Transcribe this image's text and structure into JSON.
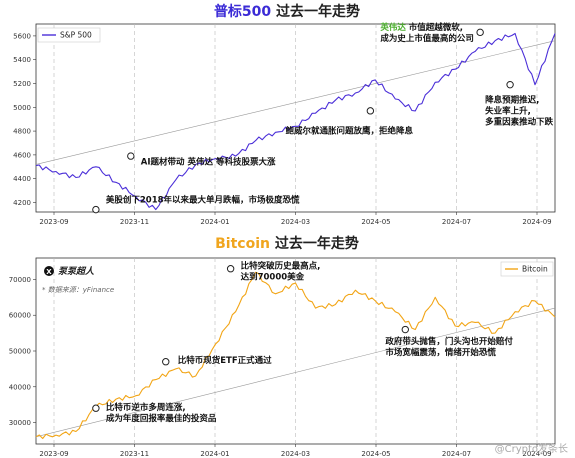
{
  "corner_watermark": "@Crypto发条长",
  "chart_data": [
    {
      "type": "line",
      "title_part1": "普标500",
      "title_part2": " 过去一年走势",
      "title_colors": [
        "#3b2bd6",
        "#222222"
      ],
      "line_color": "#4b2fd8",
      "legend": "S&P 500",
      "legend_placement": "top-left",
      "x_ticks": [
        "2023-09",
        "2023-11",
        "2024-01",
        "2024-03",
        "2024-05",
        "2024-07",
        "2024-09"
      ],
      "y_ticks": [
        4200,
        4400,
        4600,
        4800,
        5000,
        5200,
        5400,
        5600
      ],
      "ylim": [
        4120,
        5700
      ],
      "x": [
        0,
        2,
        4,
        6,
        8,
        10,
        12,
        14,
        16,
        18,
        20,
        22,
        24,
        26,
        28,
        30,
        32,
        34,
        36,
        38,
        40,
        42,
        44,
        46,
        48,
        50,
        52
      ],
      "values": [
        4510,
        4460,
        4410,
        4500,
        4370,
        4250,
        4140,
        4390,
        4520,
        4570,
        4590,
        4720,
        4790,
        4840,
        4950,
        5060,
        5120,
        5230,
        5070,
        4970,
        5210,
        5320,
        5470,
        5560,
        5620,
        5190,
        5620
      ],
      "markers": [
        {
          "x": 6,
          "y": 4140
        },
        {
          "x": 9.5,
          "y": 4590
        },
        {
          "x": 33.5,
          "y": 4970
        },
        {
          "x": 44.5,
          "y": 5630
        },
        {
          "x": 47.5,
          "y": 5190
        }
      ],
      "trend": [
        {
          "x": 0,
          "y": 4520
        },
        {
          "x": 52,
          "y": 5560
        }
      ],
      "annotations": [
        {
          "lines": [
            "美股创下2018年以来最大单月跌幅，市场极度恐慌"
          ],
          "x": 7,
          "y": 4200,
          "highlight": ""
        },
        {
          "lines": [
            "AI题材带动 英伟达 等科技股票大涨"
          ],
          "x": 10.5,
          "y": 4520,
          "highlight": ""
        },
        {
          "lines": [
            "鲍威尔就通胀问题放鹰，拒绝降息"
          ],
          "x": 25,
          "y": 4780,
          "highlight": ""
        },
        {
          "lines": [
            "英伟达 市值超越微软,",
            "成为史上市值最高的公司"
          ],
          "x": 34.5,
          "y": 5650,
          "highlight": "英伟达"
        },
        {
          "lines": [
            "降息预期推迟,",
            "失业率上升,",
            "多重因素推动下跌"
          ],
          "x": 45,
          "y": 5040,
          "highlight": ""
        }
      ]
    },
    {
      "type": "line",
      "title_part1": "Bitcoin",
      "title_part2": " 过去一年走势",
      "title_colors": [
        "#f0a51e",
        "#222222"
      ],
      "line_color": "#f2a516",
      "legend": "Bitcoin",
      "legend_placement": "top-right",
      "watermark_name": "泵泵超人",
      "watermark_source": "* 数据来源：yFinance",
      "x_ticks": [
        "2023-09",
        "2023-11",
        "2024-01",
        "2024-03",
        "2024-05",
        "2024-07",
        "2024-09"
      ],
      "y_ticks": [
        30000,
        40000,
        50000,
        60000,
        70000
      ],
      "ylim": [
        24000,
        76000
      ],
      "x": [
        0,
        2,
        4,
        6,
        8,
        10,
        12,
        14,
        16,
        18,
        20,
        22,
        24,
        26,
        28,
        30,
        32,
        34,
        36,
        38,
        40,
        42,
        44,
        46,
        48,
        50,
        52
      ],
      "values": [
        26000,
        26500,
        27500,
        34500,
        36500,
        37500,
        42000,
        45000,
        43000,
        52000,
        61000,
        72000,
        66000,
        69000,
        62000,
        63000,
        67000,
        64000,
        61000,
        56000,
        65000,
        57000,
        58000,
        55000,
        61000,
        64000,
        59500
      ],
      "markers": [
        {
          "x": 6,
          "y": 34000
        },
        {
          "x": 13,
          "y": 47000
        },
        {
          "x": 19.5,
          "y": 73000
        },
        {
          "x": 37,
          "y": 56000
        }
      ],
      "trend": [
        {
          "x": 0,
          "y": 26000
        },
        {
          "x": 52,
          "y": 62000
        }
      ],
      "annotations": [
        {
          "lines": [
            "比特币逆市多周连涨,",
            "成为年度回报率最佳的投资品"
          ],
          "x": 7,
          "y": 33500,
          "highlight": ""
        },
        {
          "lines": [
            "比特币现货ETF正式通过"
          ],
          "x": 14.2,
          "y": 46600,
          "highlight": ""
        },
        {
          "lines": [
            "比特突破历史最高点,",
            "达到70000美金"
          ],
          "x": 20.5,
          "y": 73000,
          "highlight": ""
        },
        {
          "lines": [
            "政府带头抛售，门头沟也开始赔付",
            "市场宽幅震荡，情绪开始恐慌"
          ],
          "x": 35,
          "y": 52000,
          "highlight": ""
        }
      ]
    }
  ]
}
